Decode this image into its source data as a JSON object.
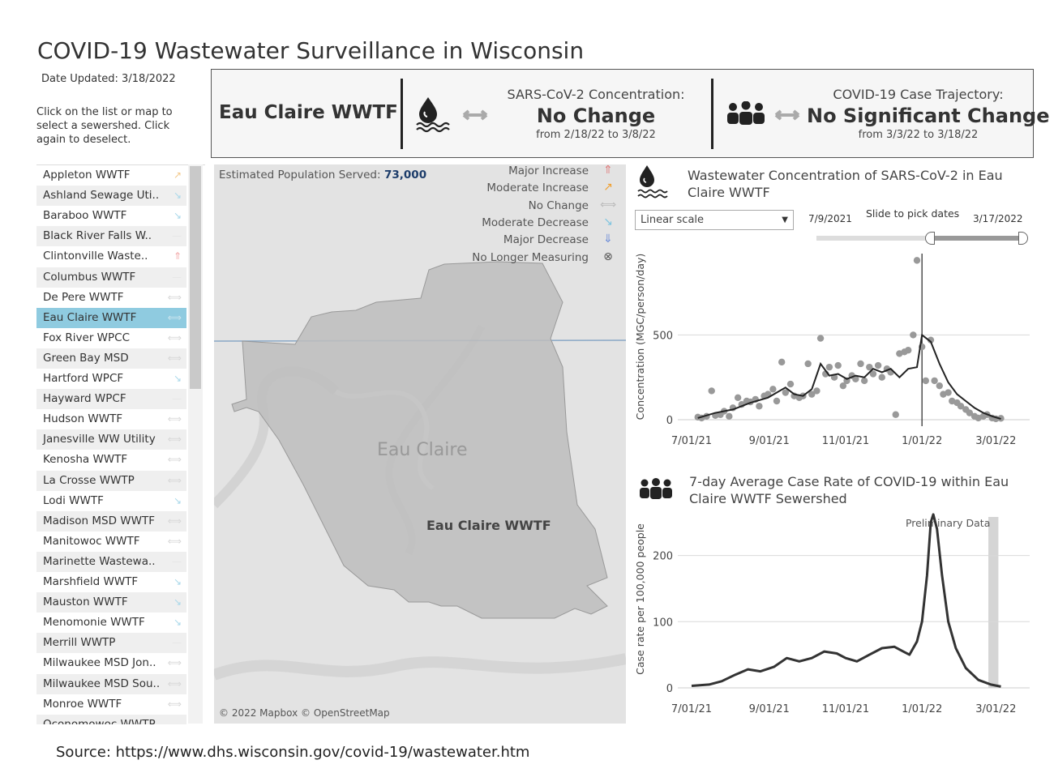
{
  "title": "COVID-19 Wastewater Surveillance in Wisconsin",
  "date_updated": "Date Updated: 3/18/2022",
  "instructions": "Click on the list or map to select a sewershed. Click again to deselect.",
  "summary": {
    "facility": "Eau Claire WWTF",
    "concentration_label": "SARS-CoV-2 Concentration:",
    "concentration_value": "No Change",
    "concentration_range": "from 2/18/22 to 3/8/22",
    "trajectory_label": "COVID-19 Case Trajectory:",
    "trajectory_value": "No Significant Change",
    "trajectory_range": "from 3/3/22 to 3/18/22"
  },
  "sites": [
    {
      "name": "Appleton WWTF",
      "trend": "moderate-increase"
    },
    {
      "name": "Ashland Sewage Uti..",
      "trend": "moderate-decrease"
    },
    {
      "name": "Baraboo WWTF",
      "trend": "moderate-decrease"
    },
    {
      "name": "Black River Falls W..",
      "trend": "none"
    },
    {
      "name": "Clintonville Waste..",
      "trend": "major-increase"
    },
    {
      "name": "Columbus WWTF",
      "trend": "none"
    },
    {
      "name": "De Pere WWTF",
      "trend": "no-change"
    },
    {
      "name": "Eau Claire WWTF",
      "trend": "no-change",
      "selected": true
    },
    {
      "name": "Fox River WPCC",
      "trend": "no-change"
    },
    {
      "name": "Green Bay MSD",
      "trend": "no-change"
    },
    {
      "name": "Hartford WPCF",
      "trend": "moderate-decrease"
    },
    {
      "name": "Hayward WPCF",
      "trend": "none"
    },
    {
      "name": "Hudson WWTF",
      "trend": "no-change"
    },
    {
      "name": "Janesville WW Utility",
      "trend": "no-change"
    },
    {
      "name": "Kenosha WWTF",
      "trend": "no-change"
    },
    {
      "name": "La Crosse WWTP",
      "trend": "no-change"
    },
    {
      "name": "Lodi WWTF",
      "trend": "moderate-decrease"
    },
    {
      "name": "Madison MSD WWTF",
      "trend": "no-change"
    },
    {
      "name": "Manitowoc WWTF",
      "trend": "no-change"
    },
    {
      "name": "Marinette Wastewa..",
      "trend": "none"
    },
    {
      "name": "Marshfield WWTF",
      "trend": "moderate-decrease"
    },
    {
      "name": "Mauston WWTF",
      "trend": "moderate-decrease"
    },
    {
      "name": "Menomonie WWTF",
      "trend": "moderate-decrease"
    },
    {
      "name": "Merrill WWTP",
      "trend": "none"
    },
    {
      "name": "Milwaukee MSD Jon..",
      "trend": "no-change"
    },
    {
      "name": "Milwaukee MSD Sou..",
      "trend": "no-change"
    },
    {
      "name": "Monroe WWTF",
      "trend": "no-change"
    },
    {
      "name": "Oconomowoc WWTP",
      "trend": "none"
    }
  ],
  "map": {
    "population_label": "Estimated Population Served:",
    "population_value": "73,000",
    "city_label": "Eau Claire",
    "facility_label": "Eau Claire WWTF",
    "attribution": "© 2022 Mapbox © OpenStreetMap",
    "legend": [
      {
        "label": "Major Increase",
        "icon": "major-increase-arrow",
        "symbol": "⇑",
        "color": "#e07b7b"
      },
      {
        "label": "Moderate Increase",
        "icon": "moderate-increase-arrow",
        "symbol": "↗",
        "color": "#f0a030"
      },
      {
        "label": "No Change",
        "icon": "no-change-arrow",
        "symbol": "⟺",
        "color": "#bbbbbb"
      },
      {
        "label": "Moderate Decrease",
        "icon": "moderate-decrease-arrow",
        "symbol": "↘",
        "color": "#7ec4e0"
      },
      {
        "label": "Major Decrease",
        "icon": "major-decrease-arrow",
        "symbol": "⇓",
        "color": "#6f8fd8"
      },
      {
        "label": "No Longer Measuring",
        "icon": "no-longer-measuring-icon",
        "symbol": "⊗",
        "color": "#555555"
      }
    ]
  },
  "wastewater_panel": {
    "title": "Wastewater Concentration of SARS-CoV-2 in Eau Claire WWTF",
    "scale_select": "Linear scale",
    "slider_start": "7/9/2021",
    "slider_label": "Slide to pick dates",
    "slider_end": "3/17/2022"
  },
  "case_panel": {
    "title": "7-day Average Case Rate of COVID-19 within Eau Claire WWTF Sewershed",
    "annotation": "Preliminary Data"
  },
  "source": "Source:  https://www.dhs.wisconsin.gov/covid-19/wastewater.htm",
  "chart_data": [
    {
      "type": "scatter",
      "title": "Wastewater Concentration of SARS-CoV-2 in Eau Claire WWTF",
      "xlabel": "",
      "ylabel": "Concentration (MGC/person/day)",
      "x_ticks": [
        "7/01/21",
        "9/01/21",
        "11/01/21",
        "1/01/22",
        "3/01/22"
      ],
      "y_ticks": [
        0,
        500
      ],
      "ylim": [
        0,
        980
      ],
      "xlim": [
        "2021-06-20",
        "2022-03-28"
      ],
      "points": [
        [
          "2021-07-06",
          15
        ],
        [
          "2021-07-09",
          10
        ],
        [
          "2021-07-13",
          20
        ],
        [
          "2021-07-17",
          170
        ],
        [
          "2021-07-20",
          25
        ],
        [
          "2021-07-24",
          30
        ],
        [
          "2021-07-27",
          50
        ],
        [
          "2021-07-31",
          20
        ],
        [
          "2021-08-03",
          70
        ],
        [
          "2021-08-07",
          130
        ],
        [
          "2021-08-10",
          90
        ],
        [
          "2021-08-14",
          110
        ],
        [
          "2021-08-17",
          105
        ],
        [
          "2021-08-21",
          120
        ],
        [
          "2021-08-24",
          80
        ],
        [
          "2021-08-28",
          140
        ],
        [
          "2021-08-31",
          150
        ],
        [
          "2021-09-04",
          180
        ],
        [
          "2021-09-07",
          110
        ],
        [
          "2021-09-11",
          340
        ],
        [
          "2021-09-14",
          160
        ],
        [
          "2021-09-18",
          210
        ],
        [
          "2021-09-21",
          140
        ],
        [
          "2021-09-25",
          130
        ],
        [
          "2021-09-28",
          140
        ],
        [
          "2021-10-02",
          330
        ],
        [
          "2021-10-05",
          150
        ],
        [
          "2021-10-09",
          170
        ],
        [
          "2021-10-12",
          480
        ],
        [
          "2021-10-16",
          270
        ],
        [
          "2021-10-19",
          310
        ],
        [
          "2021-10-23",
          250
        ],
        [
          "2021-10-26",
          320
        ],
        [
          "2021-10-30",
          200
        ],
        [
          "2021-11-02",
          230
        ],
        [
          "2021-11-06",
          260
        ],
        [
          "2021-11-09",
          240
        ],
        [
          "2021-11-13",
          330
        ],
        [
          "2021-11-16",
          230
        ],
        [
          "2021-11-20",
          310
        ],
        [
          "2021-11-23",
          270
        ],
        [
          "2021-11-27",
          320
        ],
        [
          "2021-11-30",
          250
        ],
        [
          "2021-12-04",
          300
        ],
        [
          "2021-12-07",
          280
        ],
        [
          "2021-12-11",
          30
        ],
        [
          "2021-12-14",
          390
        ],
        [
          "2021-12-18",
          400
        ],
        [
          "2021-12-21",
          410
        ],
        [
          "2021-12-25",
          500
        ],
        [
          "2021-12-28",
          940
        ],
        [
          "2022-01-01",
          430
        ],
        [
          "2022-01-04",
          230
        ],
        [
          "2022-01-08",
          470
        ],
        [
          "2022-01-11",
          230
        ],
        [
          "2022-01-15",
          200
        ],
        [
          "2022-01-18",
          150
        ],
        [
          "2022-01-22",
          160
        ],
        [
          "2022-01-25",
          110
        ],
        [
          "2022-01-29",
          100
        ],
        [
          "2022-02-01",
          80
        ],
        [
          "2022-02-05",
          60
        ],
        [
          "2022-02-08",
          40
        ],
        [
          "2022-02-12",
          20
        ],
        [
          "2022-02-15",
          10
        ],
        [
          "2022-02-19",
          20
        ],
        [
          "2022-02-22",
          30
        ],
        [
          "2022-02-26",
          10
        ],
        [
          "2022-03-01",
          5
        ],
        [
          "2022-03-05",
          8
        ]
      ],
      "smoothed_line": [
        [
          "2021-07-06",
          10
        ],
        [
          "2021-07-20",
          40
        ],
        [
          "2021-08-03",
          60
        ],
        [
          "2021-08-17",
          100
        ],
        [
          "2021-08-31",
          130
        ],
        [
          "2021-09-14",
          190
        ],
        [
          "2021-09-21",
          150
        ],
        [
          "2021-09-28",
          140
        ],
        [
          "2021-10-05",
          180
        ],
        [
          "2021-10-12",
          330
        ],
        [
          "2021-10-19",
          260
        ],
        [
          "2021-10-26",
          270
        ],
        [
          "2021-11-02",
          240
        ],
        [
          "2021-11-09",
          260
        ],
        [
          "2021-11-16",
          250
        ],
        [
          "2021-11-23",
          300
        ],
        [
          "2021-11-30",
          280
        ],
        [
          "2021-12-07",
          300
        ],
        [
          "2021-12-14",
          250
        ],
        [
          "2021-12-21",
          300
        ],
        [
          "2021-12-28",
          310
        ],
        [
          "2022-01-01",
          500
        ],
        [
          "2022-01-08",
          460
        ],
        [
          "2022-01-15",
          330
        ],
        [
          "2022-01-22",
          220
        ],
        [
          "2022-01-29",
          150
        ],
        [
          "2022-02-05",
          110
        ],
        [
          "2022-02-12",
          70
        ],
        [
          "2022-02-19",
          40
        ],
        [
          "2022-02-26",
          20
        ],
        [
          "2022-03-05",
          5
        ]
      ],
      "reference_line_date": "2022-01-01"
    },
    {
      "type": "line",
      "title": "7-day Average Case Rate of COVID-19 within Eau Claire WWTF Sewershed",
      "xlabel": "",
      "ylabel": "Case rate per 100,000 people",
      "x_ticks": [
        "7/01/21",
        "9/01/21",
        "11/01/21",
        "1/01/22",
        "3/01/22"
      ],
      "y_ticks": [
        0,
        100,
        200
      ],
      "ylim": [
        0,
        268
      ],
      "xlim": [
        "2021-06-20",
        "2022-03-28"
      ],
      "preliminary_range": [
        "2022-02-23",
        "2022-03-03"
      ],
      "values": [
        [
          "2021-07-01",
          3
        ],
        [
          "2021-07-15",
          5
        ],
        [
          "2021-07-25",
          10
        ],
        [
          "2021-08-05",
          20
        ],
        [
          "2021-08-15",
          28
        ],
        [
          "2021-08-25",
          25
        ],
        [
          "2021-09-05",
          32
        ],
        [
          "2021-09-15",
          45
        ],
        [
          "2021-09-25",
          40
        ],
        [
          "2021-10-05",
          45
        ],
        [
          "2021-10-15",
          55
        ],
        [
          "2021-10-25",
          52
        ],
        [
          "2021-11-01",
          45
        ],
        [
          "2021-11-10",
          40
        ],
        [
          "2021-11-20",
          50
        ],
        [
          "2021-11-30",
          60
        ],
        [
          "2021-12-10",
          62
        ],
        [
          "2021-12-17",
          55
        ],
        [
          "2021-12-22",
          50
        ],
        [
          "2021-12-28",
          70
        ],
        [
          "2022-01-01",
          100
        ],
        [
          "2022-01-05",
          170
        ],
        [
          "2022-01-08",
          250
        ],
        [
          "2022-01-10",
          262
        ],
        [
          "2022-01-13",
          240
        ],
        [
          "2022-01-17",
          170
        ],
        [
          "2022-01-22",
          100
        ],
        [
          "2022-01-28",
          60
        ],
        [
          "2022-02-05",
          30
        ],
        [
          "2022-02-15",
          12
        ],
        [
          "2022-02-25",
          5
        ],
        [
          "2022-03-05",
          2
        ]
      ]
    }
  ]
}
